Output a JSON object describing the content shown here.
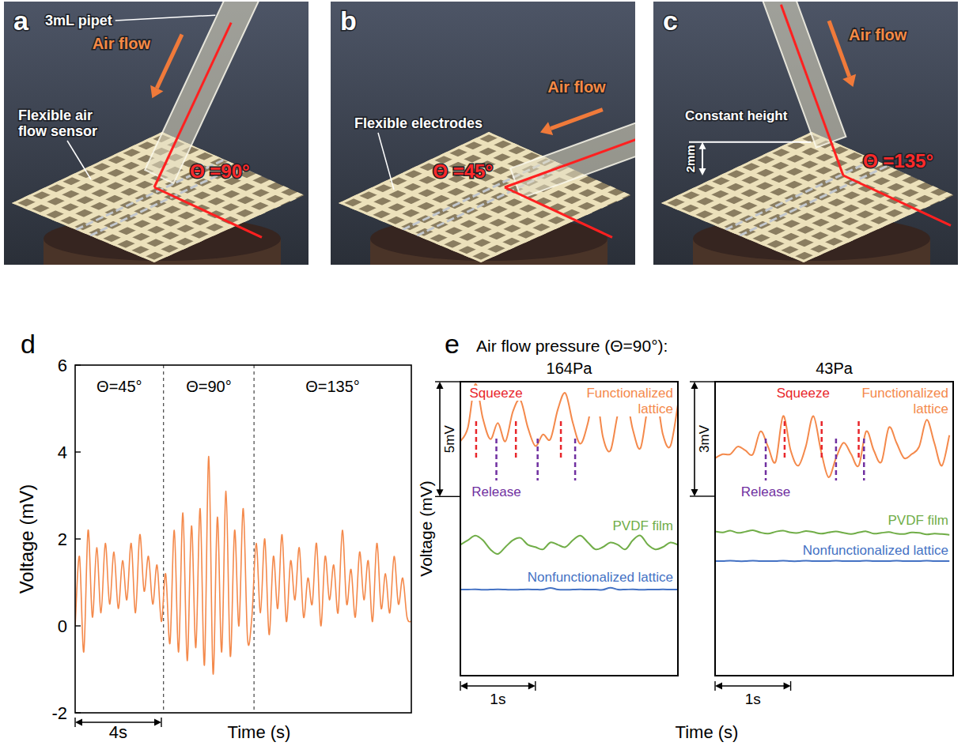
{
  "photos": [
    {
      "letter": "a",
      "angle": 90,
      "angle_label": "Θ =90°",
      "flow_label": "Air flow",
      "pipet_label": "3mL pipet",
      "sensor_label": "Flexible air flow sensor"
    },
    {
      "letter": "b",
      "angle": 45,
      "angle_label": "Θ =45°",
      "flow_label": "Air flow",
      "electrode_label": "Flexible electrodes"
    },
    {
      "letter": "c",
      "angle": 135,
      "angle_label": "Θ =135°",
      "flow_label": "Air flow",
      "height_label": "Constant height",
      "gap_label": "2mm"
    }
  ],
  "panel_e": {
    "letter": "e",
    "title": "Air flow pressure (Θ=90°):",
    "y_label": "Voltage (mV)",
    "x_label": "Time (s)"
  },
  "chart_data": [
    {
      "type": "line",
      "letter": "d",
      "x_label": "Time (s)",
      "y_label": "Voltage (mV)",
      "color": "#f4894b",
      "x": [
        0,
        0.2,
        0.4,
        0.6,
        0.8,
        1,
        1.2,
        1.4,
        1.6,
        1.8,
        2,
        2.2,
        2.4,
        2.6,
        2.8,
        3,
        3.2,
        3.4,
        3.6,
        3.8,
        4,
        4.2,
        4.4,
        4.6,
        4.8,
        5,
        5.2,
        5.4,
        5.6,
        5.8,
        6,
        6.2,
        6.4,
        6.6,
        6.8,
        7,
        7.2,
        7.4,
        7.6,
        7.8,
        8,
        8.2,
        8.4,
        8.6,
        8.8,
        9,
        9.2,
        9.4,
        9.6,
        9.8,
        10,
        10.2,
        10.4,
        10.6,
        10.8,
        11,
        11.2,
        11.4,
        11.6,
        11.8,
        12,
        12.2,
        12.4,
        12.6,
        12.8,
        13,
        13.2,
        13.4,
        13.6,
        13.8,
        14,
        14.2,
        14.4,
        14.6,
        14.8,
        15,
        15.2,
        15.4,
        15.6
      ],
      "values": [
        0,
        1.6,
        -0.6,
        2.2,
        0.2,
        1.8,
        0.3,
        1.9,
        0.5,
        1.7,
        0.4,
        1.5,
        0.6,
        1.9,
        0.3,
        2.1,
        0.8,
        1.6,
        0.5,
        1.4,
        0.1,
        1.2,
        -0.4,
        2.2,
        -0.6,
        2.6,
        -0.8,
        2.3,
        -0.5,
        2.7,
        -0.9,
        3.9,
        -1.1,
        2.5,
        -0.6,
        3.1,
        -0.7,
        2.2,
        0,
        2.7,
        -0.3,
        0.2,
        1.9,
        0.3,
        2,
        -0.2,
        1.6,
        0.4,
        2.1,
        0.1,
        1.5,
        0.6,
        1.8,
        0.2,
        1.1,
        0.5,
        1.9,
        0,
        1.6,
        0.6,
        1.4,
        0.3,
        2.2,
        0.5,
        1.3,
        0.2,
        1.7,
        0.6,
        1.5,
        0.1,
        1.9,
        0.4,
        1.2,
        0.3,
        1.6,
        0.5,
        1.1,
        0.2,
        0.1
      ],
      "xlim": [
        0,
        15.6
      ],
      "ylim": [
        -2,
        6
      ],
      "yticks": [
        -2,
        0,
        2,
        4,
        6
      ],
      "tick_labels": "y",
      "dividers": [
        4.1,
        8.3
      ],
      "section_labels": [
        "Θ=45°",
        "Θ=90°",
        "Θ=135°"
      ],
      "scale_bar_x": {
        "length": 4,
        "label": "4s"
      }
    },
    {
      "type": "line",
      "title": "164Pa",
      "x": [
        0,
        0.1,
        0.2,
        0.3,
        0.4,
        0.5,
        0.6,
        0.7,
        0.8,
        0.9,
        1,
        1.1,
        1.2,
        1.3,
        1.4,
        1.5,
        1.6,
        1.7,
        1.8,
        1.9,
        2,
        2.1,
        2.2,
        2.3,
        2.4,
        2.5,
        2.6,
        2.7,
        2.8,
        2.9
      ],
      "xlim": [
        0,
        2.9
      ],
      "ylim": [
        0,
        12.8
      ],
      "tick_labels": false,
      "series": [
        {
          "name": "Functionalized lattice",
          "color": "#f4894b",
          "values": [
            10.2,
            10.8,
            12.7,
            11.2,
            10.3,
            11.0,
            10.2,
            11.5,
            12.0,
            10.8,
            10.0,
            10.5,
            10.3,
            11.6,
            12.3,
            11.0,
            10.1,
            11.0,
            12.5,
            10.4,
            9.8,
            11.4,
            12.2,
            10.7,
            9.9,
            11.7,
            12.4,
            10.5,
            10.0,
            11.8
          ]
        },
        {
          "name": "PVDF film",
          "color": "#70ad47",
          "values": [
            5.7,
            5.9,
            6.1,
            5.9,
            5.5,
            5.3,
            5.6,
            5.9,
            6.0,
            5.7,
            5.6,
            5.5,
            5.8,
            5.7,
            5.6,
            5.9,
            6.1,
            5.8,
            5.5,
            5.6,
            5.8,
            5.7,
            5.5,
            5.9,
            6.1,
            5.7,
            5.5,
            5.6,
            5.8,
            5.7
          ]
        },
        {
          "name": "Nonfunctionalized lattice",
          "color": "#4472c4",
          "values": [
            3.75,
            3.75,
            3.76,
            3.74,
            3.75,
            3.76,
            3.75,
            3.74,
            3.75,
            3.76,
            3.75,
            3.75,
            3.82,
            3.75,
            3.74,
            3.75,
            3.76,
            3.75,
            3.75,
            3.74,
            3.83,
            3.75,
            3.75,
            3.76,
            3.74,
            3.75,
            3.75,
            3.76,
            3.75,
            3.75
          ]
        }
      ],
      "scale_bar_y": {
        "length": 5,
        "label": "5mV"
      },
      "scale_bar_x": {
        "length": 1,
        "label": "1s"
      },
      "squeeze": {
        "label": "Squeeze",
        "color": "#e8262b",
        "x": [
          0.21,
          0.74,
          1.34
        ]
      },
      "release": {
        "label": "Release",
        "color": "#7030a0",
        "x": [
          0.48,
          1.03,
          1.53
        ]
      }
    },
    {
      "type": "line",
      "title": "43Pa",
      "x": [
        0,
        0.1,
        0.2,
        0.3,
        0.4,
        0.5,
        0.6,
        0.7,
        0.8,
        0.9,
        1,
        1.1,
        1.2,
        1.3,
        1.4,
        1.5,
        1.6,
        1.7,
        1.8,
        1.9,
        2,
        2.1,
        2.2,
        2.3,
        2.4,
        2.5,
        2.6,
        2.7,
        2.8,
        2.9,
        3,
        3.1
      ],
      "xlim": [
        0,
        3.15
      ],
      "ylim": [
        0,
        7.7
      ],
      "tick_labels": false,
      "series": [
        {
          "name": "Functionalized lattice",
          "color": "#f4894b",
          "values": [
            5.7,
            5.8,
            5.8,
            6.0,
            5.9,
            5.8,
            6.4,
            6.0,
            5.6,
            6.8,
            5.9,
            5.5,
            6.0,
            6.8,
            5.9,
            5.2,
            5.7,
            6.1,
            5.8,
            5.5,
            6.4,
            5.9,
            5.6,
            6.5,
            6.1,
            5.7,
            5.8,
            6.0,
            6.7,
            6.1,
            5.5,
            6.3
          ]
        },
        {
          "name": "PVDF film",
          "color": "#70ad47",
          "values": [
            3.78,
            3.75,
            3.8,
            3.74,
            3.77,
            3.81,
            3.75,
            3.72,
            3.77,
            3.8,
            3.75,
            3.74,
            3.79,
            3.76,
            3.72,
            3.75,
            3.78,
            3.74,
            3.71,
            3.75,
            3.78,
            3.72,
            3.74,
            3.76,
            3.72,
            3.71,
            3.75,
            3.74,
            3.7,
            3.72,
            3.71,
            3.69
          ]
        },
        {
          "name": "Nonfunctionalized lattice",
          "color": "#4472c4",
          "values": [
            3,
            3,
            3.01,
            3,
            3,
            3.01,
            3,
            3,
            3,
            3.01,
            3,
            3,
            3.01,
            3,
            3,
            3,
            3.01,
            3,
            3,
            3,
            3.01,
            3,
            3,
            3,
            3.01,
            3,
            3,
            3,
            3.01,
            3,
            3,
            3
          ]
        }
      ],
      "scale_bar_y": {
        "length": 3,
        "label": "3mV"
      },
      "scale_bar_x": {
        "length": 1,
        "label": "1s"
      },
      "squeeze": {
        "label": "Squeeze",
        "color": "#e8262b",
        "x": [
          0.92,
          1.41,
          1.9
        ]
      },
      "release": {
        "label": "Release",
        "color": "#7030a0",
        "x": [
          0.67,
          1.6,
          1.97
        ]
      }
    }
  ]
}
